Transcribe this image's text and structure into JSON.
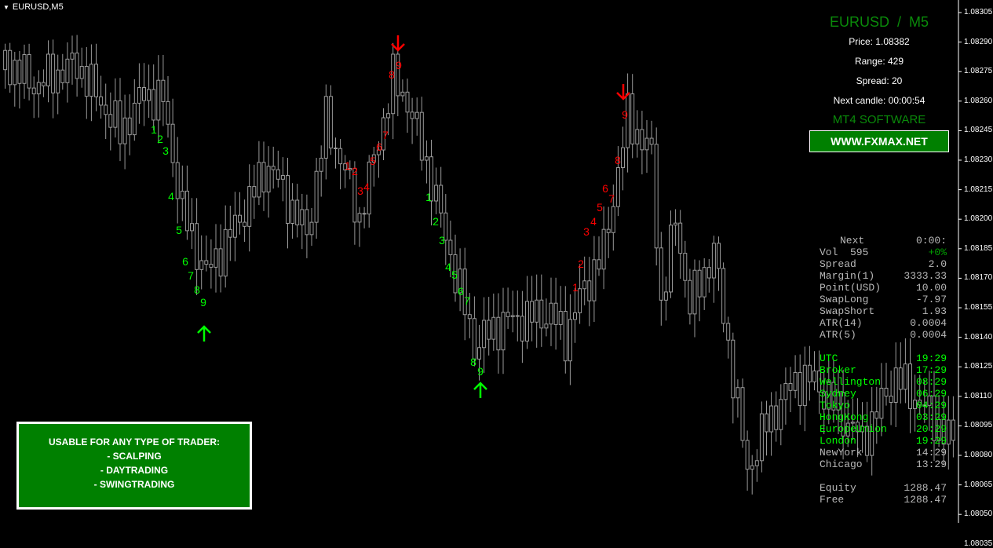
{
  "window": {
    "title": "EURUSD,M5"
  },
  "price_axis": {
    "labels": [
      "1.08305",
      "1.08290",
      "1.08275",
      "1.08260",
      "1.08245",
      "1.08230",
      "1.08215",
      "1.08200",
      "1.08185",
      "1.08170",
      "1.08155",
      "1.08140",
      "1.08125",
      "1.08110",
      "1.08095",
      "1.08080",
      "1.08065",
      "1.08050",
      "1.08035"
    ]
  },
  "candles": {
    "color": "#9a9a9a",
    "keypoints": [
      [
        0,
        1.08276
      ],
      [
        1,
        1.08281
      ],
      [
        7,
        1.08268
      ],
      [
        16,
        1.08279
      ],
      [
        25,
        1.08244
      ],
      [
        30,
        1.08264
      ],
      [
        34,
        1.0826
      ],
      [
        38,
        1.08204
      ],
      [
        43,
        1.08172
      ],
      [
        49,
        1.08196
      ],
      [
        56,
        1.08228
      ],
      [
        64,
        1.08192
      ],
      [
        68,
        1.0825
      ],
      [
        72,
        1.08224
      ],
      [
        75,
        1.082
      ],
      [
        82,
        1.08271
      ],
      [
        85,
        1.0826
      ],
      [
        90,
        1.0822
      ],
      [
        92,
        1.082
      ],
      [
        99,
        1.08136
      ],
      [
        105,
        1.08148
      ],
      [
        115,
        1.08152
      ],
      [
        118,
        1.0814
      ],
      [
        121,
        1.0816
      ],
      [
        126,
        1.08184
      ],
      [
        131,
        1.08252
      ],
      [
        136,
        1.08232
      ],
      [
        138,
        1.08156
      ],
      [
        141,
        1.082
      ],
      [
        144,
        1.08156
      ],
      [
        149,
        1.08184
      ],
      [
        156,
        1.08072
      ],
      [
        160,
        1.08096
      ],
      [
        166,
        1.08118
      ],
      [
        170,
        1.08118
      ],
      [
        180,
        1.08088
      ],
      [
        187,
        1.0812
      ],
      [
        193,
        1.08104
      ],
      [
        199,
        1.08086
      ]
    ]
  },
  "signals": {
    "up_color": "#00ff00",
    "down_color": "#ff0000",
    "green_1": [
      "1",
      "2",
      "3",
      "4",
      "5",
      "6",
      "7",
      "8",
      "9"
    ],
    "red_1": [
      "1",
      "2",
      "3",
      "4",
      "5",
      "6",
      "7",
      "8",
      "9"
    ],
    "green_2": [
      "1",
      "2",
      "3",
      "4",
      "5",
      "6",
      "7",
      "8",
      "9"
    ],
    "red_2": [
      "1",
      "2",
      "3",
      "4",
      "5",
      "6",
      "7",
      "8",
      "9"
    ],
    "arrows": [
      "arrow-up",
      "arrow-up",
      "arrow-down",
      "arrow-down"
    ]
  },
  "panel": {
    "symbol": "EURUSD  /  M5",
    "price": "Price: 1.08382",
    "range": "Range: 429",
    "spread": "Spread: 20",
    "next_candle": "Next candle: 00:00:54",
    "software": "MT4 SOFTWARE",
    "website": "WWW.FXMAX.NET",
    "accent": "#008000"
  },
  "info": {
    "stats": [
      [
        "Next",
        "0:00:"
      ],
      [
        "Vol  595",
        "+0%"
      ],
      [
        "Spread",
        "2.0"
      ],
      [
        "Margin(1)",
        "3333.33"
      ],
      [
        "Point(USD)",
        "10.00"
      ],
      [
        "SwapLong",
        "-7.97"
      ],
      [
        "SwapShort",
        "1.93"
      ],
      [
        "ATR(14)",
        "0.0004"
      ],
      [
        "ATR(5)",
        "0.0004"
      ]
    ],
    "clocks": [
      [
        "UTC",
        "19:29"
      ],
      [
        "Broker",
        "17:29"
      ],
      [
        "Wellington",
        "08:29"
      ],
      [
        "Sydney",
        "06:29"
      ],
      [
        "Tokyo",
        "04:29"
      ],
      [
        "HongKong",
        "03:29"
      ],
      [
        "EuropeUnion",
        "20:29"
      ],
      [
        "London",
        "19:29"
      ],
      [
        "NewYork",
        "14:29"
      ],
      [
        "Chicago",
        "13:29"
      ]
    ],
    "account": [
      [
        "Equity",
        "1288.47"
      ],
      [
        "Free",
        "1288.47"
      ]
    ]
  },
  "promo": {
    "lines": [
      "USABLE FOR ANY TYPE OF TRADER:",
      "- SCALPING",
      "- DAYTRADING",
      "- SWINGTRADING"
    ]
  }
}
